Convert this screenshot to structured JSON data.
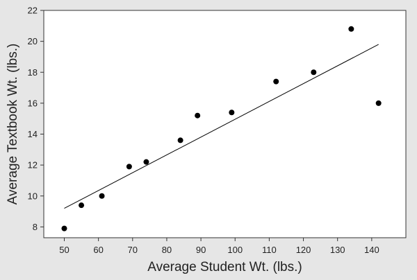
{
  "chart_data": {
    "type": "scatter",
    "title": "",
    "xlabel": "Average Student Wt. (lbs.)",
    "ylabel": "Average Textbook Wt. (lbs.)",
    "xlim": [
      44,
      150
    ],
    "ylim": [
      7.3,
      22
    ],
    "x_ticks": [
      50,
      60,
      70,
      80,
      90,
      100,
      110,
      120,
      130,
      140
    ],
    "y_ticks": [
      8,
      10,
      12,
      14,
      16,
      18,
      20,
      22
    ],
    "grid": false,
    "legend": "none",
    "series": [
      {
        "points": [
          {
            "x": 50,
            "y": 7.9
          },
          {
            "x": 55,
            "y": 9.4
          },
          {
            "x": 61,
            "y": 10.0
          },
          {
            "x": 69,
            "y": 11.9
          },
          {
            "x": 74,
            "y": 12.2
          },
          {
            "x": 84,
            "y": 13.6
          },
          {
            "x": 89,
            "y": 15.2
          },
          {
            "x": 99,
            "y": 15.4
          },
          {
            "x": 112,
            "y": 17.4
          },
          {
            "x": 123,
            "y": 18.0
          },
          {
            "x": 134,
            "y": 20.8
          },
          {
            "x": 142,
            "y": 16.0
          }
        ]
      }
    ],
    "trendline": {
      "x0": 50,
      "y0": 9.2,
      "x1": 142,
      "y1": 19.8
    },
    "colors": {
      "background": "#e6e6e6",
      "plot_background": "#ffffff",
      "marker": "#000000",
      "line": "#000000",
      "axis": "#333333"
    }
  }
}
